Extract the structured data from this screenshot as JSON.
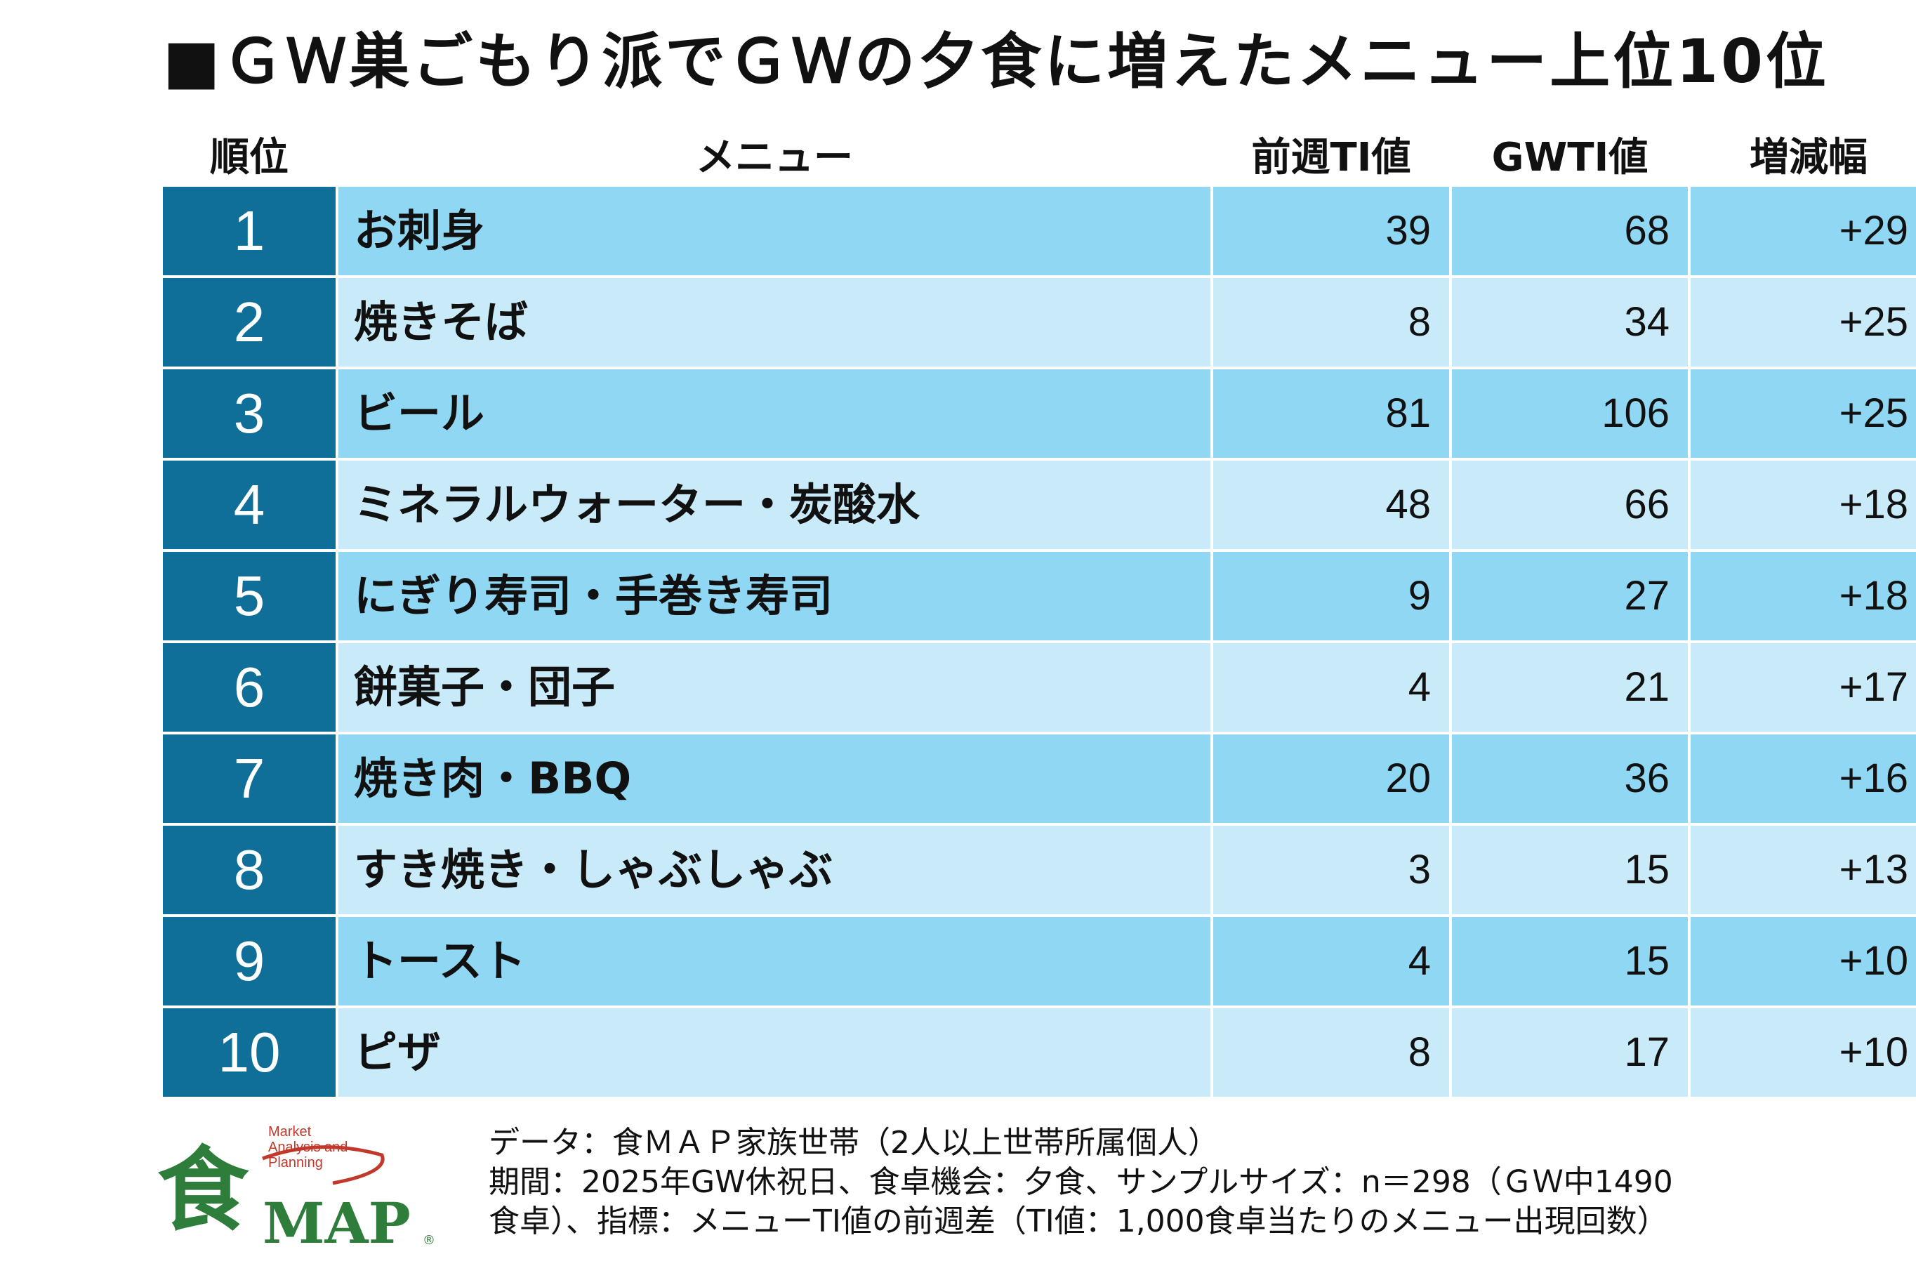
{
  "title": "■ＧＷ巣ごもり派でＧＷの夕食に増えたメニュー上位10位",
  "headers": {
    "rank": "順位",
    "menu": "メニュー",
    "prev": "前週TI値",
    "gw": "GWTI値",
    "diff": "増減幅"
  },
  "rows": [
    {
      "rank": "1",
      "menu": "お刺身",
      "prev": "39",
      "gw": "68",
      "diff": "+29"
    },
    {
      "rank": "2",
      "menu": "焼きそば",
      "prev": "8",
      "gw": "34",
      "diff": "+25"
    },
    {
      "rank": "3",
      "menu": "ビール",
      "prev": "81",
      "gw": "106",
      "diff": "+25"
    },
    {
      "rank": "4",
      "menu": "ミネラルウォーター・炭酸水",
      "prev": "48",
      "gw": "66",
      "diff": "+18"
    },
    {
      "rank": "5",
      "menu": "にぎり寿司・手巻き寿司",
      "prev": "9",
      "gw": "27",
      "diff": "+18"
    },
    {
      "rank": "6",
      "menu": "餅菓子・団子",
      "prev": "4",
      "gw": "21",
      "diff": "+17"
    },
    {
      "rank": "7",
      "menu": "焼き肉・BBQ",
      "prev": "20",
      "gw": "36",
      "diff": "+16"
    },
    {
      "rank": "8",
      "menu": "すき焼き・しゃぶしゃぶ",
      "prev": "3",
      "gw": "15",
      "diff": "+13"
    },
    {
      "rank": "9",
      "menu": "トースト",
      "prev": "4",
      "gw": "15",
      "diff": "+10"
    },
    {
      "rank": "10",
      "menu": "ピザ",
      "prev": "8",
      "gw": "17",
      "diff": "+10"
    }
  ],
  "logo": {
    "kanji": "食",
    "map": "MAP",
    "registered": "®",
    "tagline": [
      "Market",
      "Analysis and",
      "Planning"
    ]
  },
  "footer": {
    "line1": "データ：食ＭＡＰ家族世帯（2人以上世帯所属個人）",
    "line2": "期間：2025年GW休祝日、食卓機会：夕食、サンプルサイズ：n＝298（ＧＷ中1490",
    "line3": "食卓）、指標：メニューTI値の前週差（TI値：1,000食卓当たりのメニュー出現回数）"
  },
  "colors": {
    "rank_bg": "#0f6f98",
    "row_odd": "#8fd7f2",
    "row_even": "#c9ebf9",
    "logo_green": "#2e7d3a",
    "logo_red": "#c0392b"
  },
  "chart_data": {
    "type": "table",
    "title": "■ＧＷ巣ごもり派でＧＷの夕食に増えたメニュー上位10位",
    "columns": [
      "順位",
      "メニュー",
      "前週TI値",
      "GWTI値",
      "増減幅"
    ],
    "rows": [
      [
        1,
        "お刺身",
        39,
        68,
        29
      ],
      [
        2,
        "焼きそば",
        8,
        34,
        25
      ],
      [
        3,
        "ビール",
        81,
        106,
        25
      ],
      [
        4,
        "ミネラルウォーター・炭酸水",
        48,
        66,
        18
      ],
      [
        5,
        "にぎり寿司・手巻き寿司",
        9,
        27,
        18
      ],
      [
        6,
        "餅菓子・団子",
        4,
        21,
        17
      ],
      [
        7,
        "焼き肉・BBQ",
        20,
        36,
        16
      ],
      [
        8,
        "すき焼き・しゃぶしゃぶ",
        3,
        15,
        13
      ],
      [
        9,
        "トースト",
        4,
        15,
        10
      ],
      [
        10,
        "ピザ",
        8,
        17,
        10
      ]
    ]
  }
}
